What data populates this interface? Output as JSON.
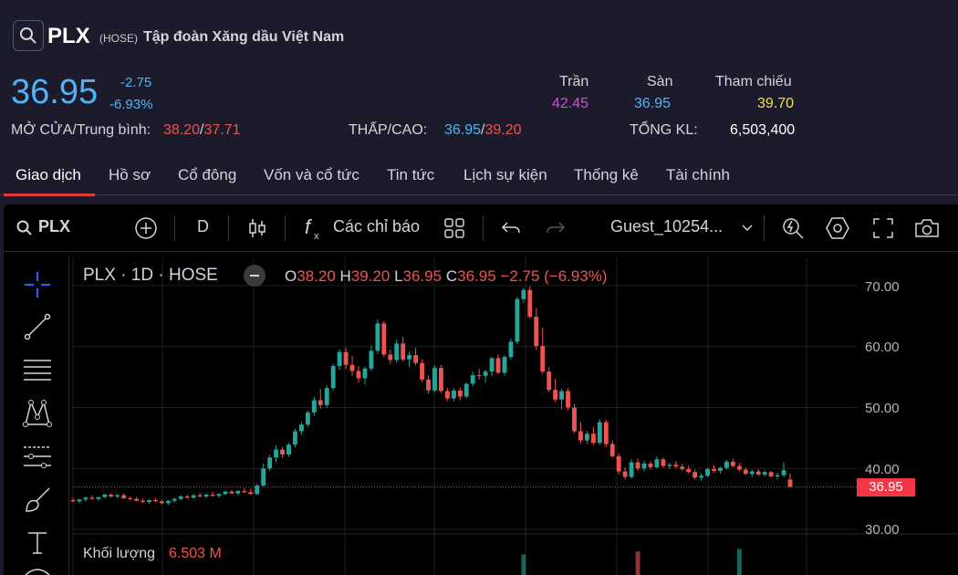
{
  "stock": {
    "ticker": "PLX",
    "exchange": "(HOSE)",
    "company": "Tập đoàn Xăng dầu Việt Nam",
    "price": "36.95",
    "change": "-2.75",
    "change_pct": "-6.93%"
  },
  "stats": {
    "ceiling_label": "Trần",
    "ceiling": "42.45",
    "floor_label": "Sàn",
    "floor": "36.95",
    "ref_label": "Tham chiếu",
    "ref": "39.70",
    "open_avg_label": "MỞ CỬA/Trung bình:",
    "open": "38.20",
    "avg": "37.71",
    "lowhigh_label": "THẤP/CAO:",
    "low": "36.95",
    "high": "39.20",
    "volume_label": "TỔNG KL:",
    "volume": "6,503,400",
    "sep": "/"
  },
  "tabs": [
    "Giao dịch",
    "Hồ sơ",
    "Cổ đông",
    "Vốn và cổ tức",
    "Tin tức",
    "Lịch sự kiện",
    "Thống kê",
    "Tài chính"
  ],
  "toolbar": {
    "symbol": "PLX",
    "interval": "D",
    "indicators_label": "Các chỉ báo",
    "user": "Guest_10254..."
  },
  "chart_legend": {
    "title": "PLX · 1D · HOSE",
    "o_label": "O",
    "o": "38.20",
    "h_label": "H",
    "h": "39.20",
    "l_label": "L",
    "l": "36.95",
    "c_label": "C",
    "c": "36.95",
    "change": "−2.75 (−6.93%)",
    "volume_label": "Khối lượng",
    "volume": "6.503 M"
  },
  "price_tag": "36.95",
  "colors": {
    "up": "#26a69a",
    "down": "#ef5350",
    "accent": "#4fb3f6",
    "ceiling": "#d64bdb",
    "ref": "#f0e040"
  },
  "chart_data": {
    "type": "candlestick",
    "yticks": [
      "70.00",
      "60.00",
      "50.00",
      "40.00",
      "30.00"
    ],
    "ylim": [
      30,
      70
    ],
    "last_price": 36.95,
    "candles": [
      [
        34.8,
        35.2,
        34.4,
        34.6
      ],
      [
        34.6,
        35.0,
        34.3,
        34.9
      ],
      [
        34.9,
        35.4,
        34.6,
        35.2
      ],
      [
        35.2,
        35.6,
        34.9,
        35.0
      ],
      [
        35.0,
        35.3,
        34.7,
        35.3
      ],
      [
        35.3,
        35.9,
        35.1,
        35.7
      ],
      [
        35.7,
        35.9,
        35.2,
        35.4
      ],
      [
        35.4,
        35.8,
        35.1,
        35.6
      ],
      [
        35.6,
        35.9,
        35.0,
        35.1
      ],
      [
        35.1,
        35.4,
        34.8,
        35.0
      ],
      [
        35.0,
        35.3,
        34.6,
        34.7
      ],
      [
        34.7,
        35.0,
        34.3,
        34.5
      ],
      [
        34.5,
        34.9,
        34.2,
        34.8
      ],
      [
        34.8,
        35.2,
        34.5,
        34.6
      ],
      [
        34.6,
        34.9,
        34.1,
        34.3
      ],
      [
        34.3,
        34.8,
        34.0,
        34.7
      ],
      [
        34.7,
        35.2,
        34.4,
        35.0
      ],
      [
        35.0,
        35.6,
        34.8,
        35.4
      ],
      [
        35.4,
        35.7,
        35.0,
        35.2
      ],
      [
        35.2,
        35.8,
        35.0,
        35.6
      ],
      [
        35.6,
        36.0,
        35.2,
        35.4
      ],
      [
        35.4,
        35.9,
        35.1,
        35.7
      ],
      [
        35.7,
        36.2,
        35.4,
        35.5
      ],
      [
        35.5,
        35.9,
        35.2,
        35.8
      ],
      [
        35.8,
        36.4,
        35.6,
        36.2
      ],
      [
        36.2,
        36.5,
        35.8,
        35.9
      ],
      [
        35.9,
        36.4,
        35.6,
        36.3
      ],
      [
        36.3,
        36.8,
        36.0,
        36.1
      ],
      [
        36.1,
        36.7,
        35.7,
        35.8
      ],
      [
        35.8,
        37.5,
        35.6,
        37.2
      ],
      [
        37.2,
        40.8,
        37.0,
        40.0
      ],
      [
        40.0,
        42.2,
        39.6,
        41.8
      ],
      [
        41.8,
        43.8,
        41.0,
        43.1
      ],
      [
        43.1,
        43.5,
        41.8,
        42.3
      ],
      [
        42.3,
        44.2,
        41.9,
        43.9
      ],
      [
        43.9,
        46.5,
        43.5,
        46.1
      ],
      [
        46.1,
        47.6,
        45.5,
        47.2
      ],
      [
        47.2,
        49.5,
        46.8,
        49.2
      ],
      [
        49.2,
        51.8,
        48.6,
        51.2
      ],
      [
        51.2,
        53.1,
        49.8,
        50.4
      ],
      [
        50.4,
        53.6,
        50.0,
        53.2
      ],
      [
        53.2,
        57.2,
        52.8,
        56.8
      ],
      [
        56.8,
        59.6,
        56.2,
        59.1
      ],
      [
        59.1,
        59.8,
        56.3,
        57.0
      ],
      [
        57.0,
        58.5,
        55.2,
        56.0
      ],
      [
        56.0,
        56.8,
        54.1,
        54.8
      ],
      [
        54.8,
        56.7,
        53.8,
        56.4
      ],
      [
        56.4,
        60.2,
        56.0,
        59.3
      ],
      [
        59.3,
        64.5,
        58.8,
        63.8
      ],
      [
        63.8,
        64.2,
        58.3,
        58.7
      ],
      [
        58.7,
        59.5,
        57.2,
        57.8
      ],
      [
        57.8,
        61.2,
        57.4,
        60.5
      ],
      [
        60.5,
        61.6,
        57.5,
        57.9
      ],
      [
        57.9,
        59.2,
        56.6,
        58.6
      ],
      [
        58.6,
        59.8,
        56.9,
        57.3
      ],
      [
        57.3,
        57.9,
        54.2,
        54.6
      ],
      [
        54.6,
        55.3,
        52.3,
        52.8
      ],
      [
        52.8,
        56.9,
        52.5,
        56.5
      ],
      [
        56.5,
        57.0,
        52.4,
        52.7
      ],
      [
        52.7,
        53.2,
        51.1,
        51.5
      ],
      [
        51.5,
        53.2,
        51.0,
        52.8
      ],
      [
        52.8,
        53.3,
        51.2,
        51.8
      ],
      [
        51.8,
        54.1,
        51.5,
        53.9
      ],
      [
        53.9,
        55.9,
        53.5,
        55.3
      ],
      [
        55.3,
        56.3,
        54.6,
        55.2
      ],
      [
        55.2,
        56.2,
        54.1,
        55.9
      ],
      [
        55.9,
        58.3,
        55.1,
        58.1
      ],
      [
        58.1,
        58.7,
        55.5,
        55.7
      ],
      [
        55.7,
        58.6,
        55.2,
        58.3
      ],
      [
        58.3,
        61.3,
        57.9,
        60.8
      ],
      [
        60.8,
        68.2,
        60.4,
        67.8
      ],
      [
        67.8,
        69.6,
        67.2,
        69.3
      ],
      [
        69.3,
        69.9,
        64.6,
        64.9
      ],
      [
        64.9,
        66.3,
        59.5,
        60.1
      ],
      [
        60.1,
        63.1,
        55.5,
        55.9
      ],
      [
        55.9,
        56.6,
        52.5,
        52.9
      ],
      [
        52.9,
        54.7,
        50.9,
        51.3
      ],
      [
        51.3,
        53.1,
        49.7,
        52.7
      ],
      [
        52.7,
        53.2,
        49.6,
        50.0
      ],
      [
        50.0,
        50.6,
        45.8,
        46.1
      ],
      [
        46.1,
        47.6,
        44.1,
        44.6
      ],
      [
        44.6,
        46.1,
        44.0,
        45.7
      ],
      [
        45.7,
        46.8,
        43.9,
        44.2
      ],
      [
        44.2,
        48.1,
        43.9,
        47.6
      ],
      [
        47.6,
        48.0,
        43.5,
        44.0
      ],
      [
        44.0,
        44.6,
        41.8,
        42.0
      ],
      [
        42.0,
        42.4,
        39.0,
        39.5
      ],
      [
        39.5,
        40.2,
        38.2,
        38.6
      ],
      [
        38.6,
        41.5,
        38.3,
        41.0
      ],
      [
        41.0,
        41.6,
        39.6,
        40.0
      ],
      [
        40.0,
        41.3,
        39.5,
        40.8
      ],
      [
        40.8,
        41.2,
        39.8,
        40.2
      ],
      [
        40.2,
        42.0,
        40.0,
        41.5
      ],
      [
        41.5,
        41.8,
        40.1,
        40.4
      ],
      [
        40.4,
        40.9,
        39.9,
        40.6
      ],
      [
        40.6,
        41.2,
        40.0,
        40.3
      ],
      [
        40.3,
        40.8,
        39.6,
        39.9
      ],
      [
        39.9,
        40.5,
        39.2,
        39.4
      ],
      [
        39.4,
        39.8,
        38.2,
        38.5
      ],
      [
        38.5,
        39.2,
        38.0,
        38.8
      ],
      [
        38.8,
        40.1,
        38.6,
        39.9
      ],
      [
        39.9,
        40.5,
        39.3,
        39.6
      ],
      [
        39.6,
        40.3,
        39.2,
        40.1
      ],
      [
        40.1,
        41.4,
        39.8,
        41.1
      ],
      [
        41.1,
        41.6,
        40.2,
        40.4
      ],
      [
        40.4,
        40.9,
        39.6,
        39.8
      ],
      [
        39.8,
        40.1,
        38.9,
        39.1
      ],
      [
        39.1,
        39.8,
        38.6,
        39.5
      ],
      [
        39.5,
        39.9,
        38.8,
        39.0
      ],
      [
        39.0,
        39.7,
        38.7,
        39.4
      ],
      [
        39.4,
        39.6,
        38.5,
        38.7
      ],
      [
        38.7,
        39.3,
        38.2,
        38.9
      ],
      [
        38.9,
        41.0,
        38.6,
        39.7
      ],
      [
        38.2,
        39.2,
        36.95,
        36.95
      ]
    ]
  }
}
